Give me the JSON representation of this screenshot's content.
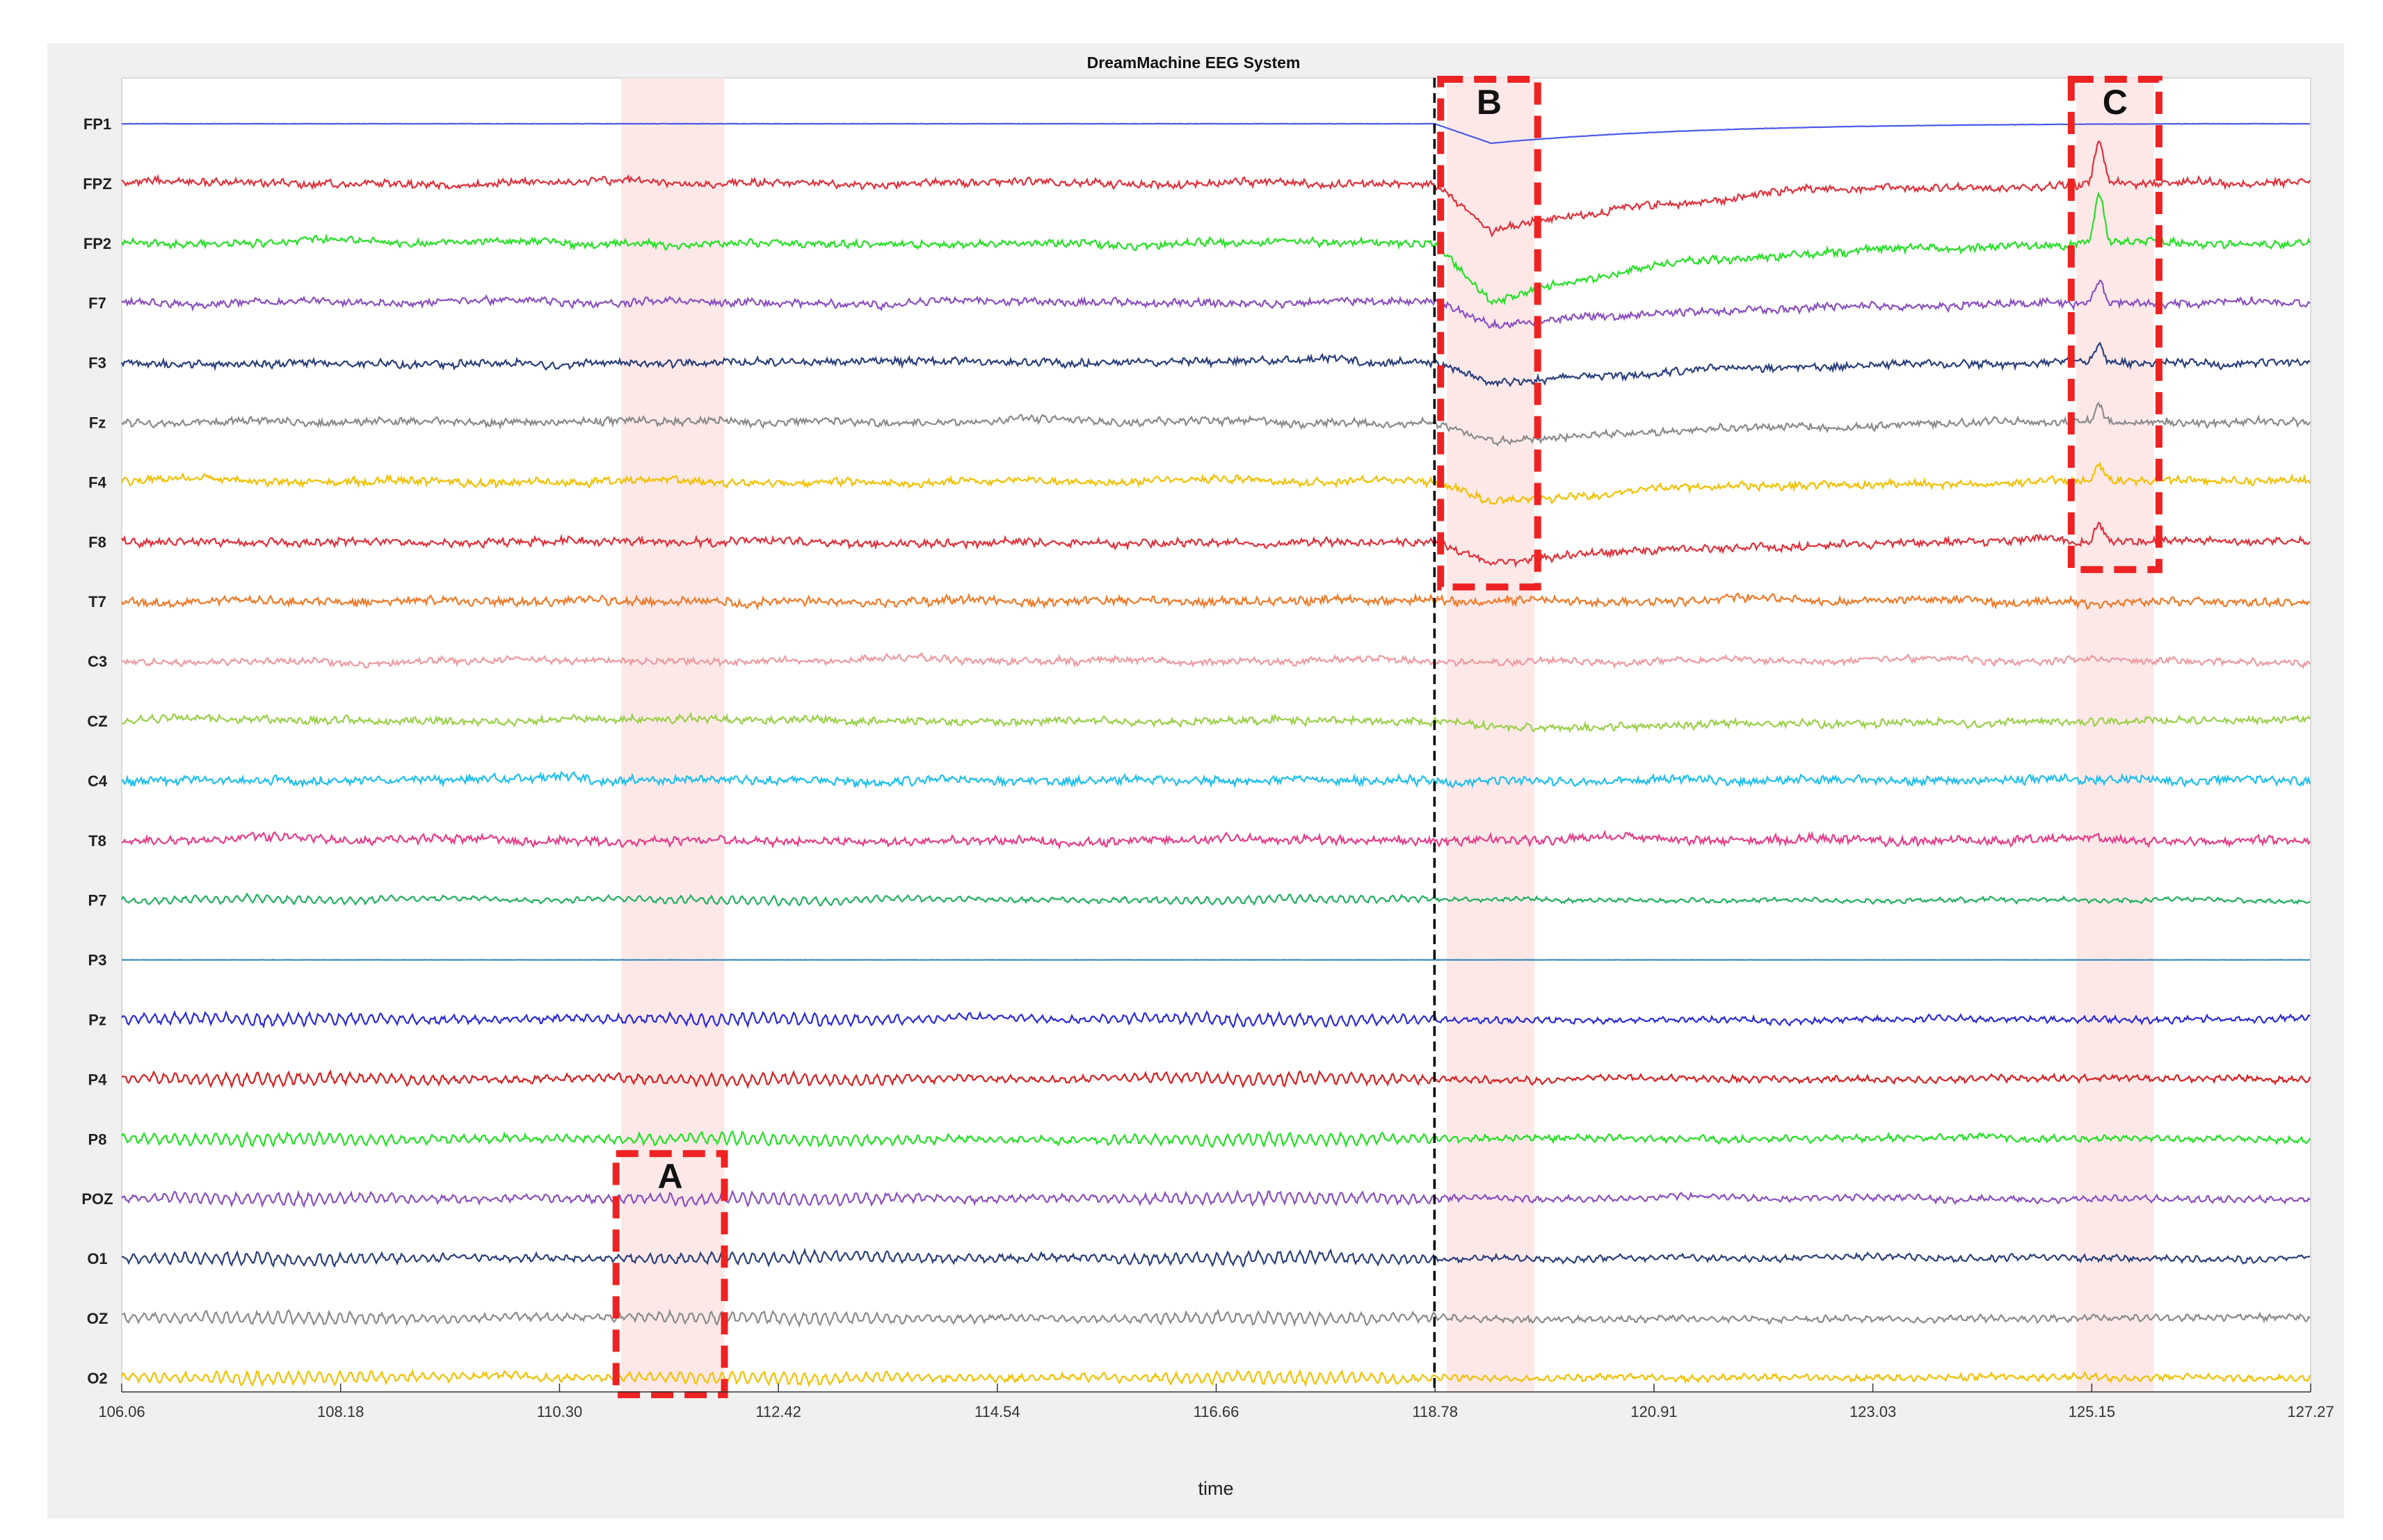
{
  "chart_data": {
    "type": "line",
    "title": "DreamMachine EEG System",
    "xlabel": "time",
    "ylabel": "",
    "xlim": [
      106.06,
      127.27
    ],
    "x_ticks": [
      "106.06",
      "108.18",
      "110.30",
      "112.42",
      "114.54",
      "116.66",
      "118.78",
      "120.91",
      "123.03",
      "125.15",
      "127.27"
    ],
    "grid": false,
    "event_marker": {
      "x": 118.78,
      "style": "black dashed vertical line"
    },
    "shaded_regions": [
      {
        "x_start": 110.9,
        "x_end": 111.9,
        "color": "#fde8e8"
      },
      {
        "x_start": 118.9,
        "x_end": 119.75,
        "color": "#fde8e8"
      },
      {
        "x_start": 125.0,
        "x_end": 125.75,
        "color": "#fde8e8"
      }
    ],
    "annotations": [
      {
        "label": "A",
        "x_start": 110.85,
        "x_end": 111.9,
        "channels": [
          "POZ",
          "O1",
          "OZ",
          "O2"
        ]
      },
      {
        "label": "B",
        "x_start": 118.84,
        "x_end": 119.78,
        "channels": [
          "FP1",
          "FPZ",
          "FP2",
          "F7",
          "F3",
          "Fz",
          "F4",
          "F8"
        ]
      },
      {
        "label": "C",
        "x_start": 124.95,
        "x_end": 125.8,
        "channels": [
          "FP1",
          "FPZ",
          "FP2",
          "F7",
          "F3",
          "Fz",
          "F4",
          "F8"
        ]
      }
    ],
    "series": [
      {
        "name": "FP1",
        "color": "#4a5ae8",
        "amp": 0.5,
        "style": "flat",
        "dip": 0.4
      },
      {
        "name": "FPZ",
        "color": "#e0303a",
        "amp": 4,
        "style": "frontal",
        "dip": 1.0
      },
      {
        "name": "FP2",
        "color": "#25e025",
        "amp": 4,
        "style": "frontal",
        "dip": 1.2
      },
      {
        "name": "F7",
        "color": "#8a4fc0",
        "amp": 4,
        "style": "frontal",
        "dip": 0.5
      },
      {
        "name": "F3",
        "color": "#2a3f7c",
        "amp": 4,
        "style": "frontal",
        "dip": 0.45
      },
      {
        "name": "Fz",
        "color": "#8a8a8a",
        "amp": 4,
        "style": "frontal",
        "dip": 0.4
      },
      {
        "name": "F4",
        "color": "#f2c000",
        "amp": 4,
        "style": "frontal",
        "dip": 0.4
      },
      {
        "name": "F8",
        "color": "#e0303a",
        "amp": 4,
        "style": "frontal",
        "dip": 0.45
      },
      {
        "name": "T7",
        "color": "#f07a28",
        "amp": 4.5,
        "style": "noise",
        "dip": 0
      },
      {
        "name": "C3",
        "color": "#ee9aa0",
        "amp": 3.5,
        "style": "noise",
        "dip": 0
      },
      {
        "name": "CZ",
        "color": "#9ad04a",
        "amp": 4,
        "style": "noise",
        "dip": 0.15
      },
      {
        "name": "C4",
        "color": "#1fbfef",
        "amp": 4.5,
        "style": "noise",
        "dip": 0
      },
      {
        "name": "T8",
        "color": "#e63d8a",
        "amp": 4.5,
        "style": "noise",
        "dip": 0
      },
      {
        "name": "P7",
        "color": "#20b060",
        "amp": 4,
        "style": "alpha",
        "dip": 0
      },
      {
        "name": "P3",
        "color": "#3a8ab8",
        "amp": 0.3,
        "style": "flat",
        "dip": 0
      },
      {
        "name": "Pz",
        "color": "#2a2ad8",
        "amp": 6,
        "style": "alpha",
        "dip": 0
      },
      {
        "name": "P4",
        "color": "#d82020",
        "amp": 6,
        "style": "alpha",
        "dip": 0
      },
      {
        "name": "P8",
        "color": "#22e022",
        "amp": 6,
        "style": "alpha",
        "dip": 0
      },
      {
        "name": "POZ",
        "color": "#8a4fc0",
        "amp": 6,
        "style": "alpha",
        "dip": 0
      },
      {
        "name": "O1",
        "color": "#2a3f7c",
        "amp": 6,
        "style": "alpha",
        "dip": 0
      },
      {
        "name": "OZ",
        "color": "#8a8a8a",
        "amp": 6,
        "style": "alpha",
        "dip": 0
      },
      {
        "name": "O2",
        "color": "#f2c000",
        "amp": 6,
        "style": "alpha",
        "dip": 0
      }
    ]
  }
}
